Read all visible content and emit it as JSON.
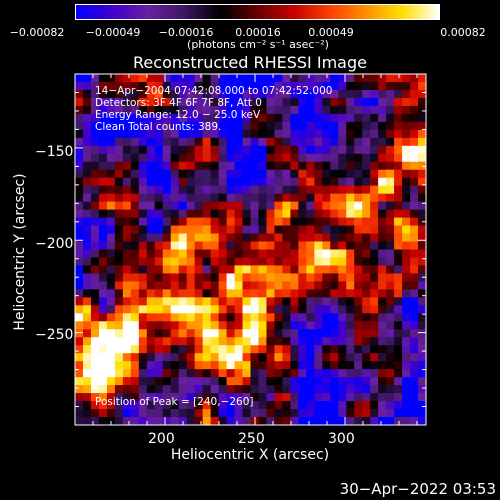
{
  "chart_data": {
    "type": "heatmap",
    "title": "Reconstructed RHESSI Image",
    "xlabel": "Heliocentric X (arcsec)",
    "ylabel": "Heliocentric Y (arcsec)",
    "xlim": [
      150,
      345
    ],
    "ylim": [
      -300,
      -110
    ],
    "x_ticks": [
      200,
      250,
      300
    ],
    "y_ticks": [
      -150,
      -200,
      -250
    ],
    "x_tick_labels": [
      "200",
      "250",
      "300"
    ],
    "y_tick_labels": [
      "−150",
      "−200",
      "−250"
    ],
    "colorbar": {
      "min": -0.00082,
      "max": 0.00082,
      "tick_labels": [
        "−0.00082",
        "−0.00049",
        "−0.00016",
        "0.00016",
        "0.00049",
        "0.00082"
      ],
      "units": "(photons cm⁻² s⁻¹ asec⁻²)"
    },
    "annotation_lines": [
      "14−Apr−2004 07:42:08.000 to 07:42:52.000",
      "Detectors: 3F 4F 6F 7F 8F, Att 0",
      "Energy Range: 12.0 − 25.0 keV",
      "Clean     Total counts: 389."
    ],
    "peak_label": "Position of Peak = [240,−260]",
    "peak_position": [
      240,
      -260
    ],
    "grid": false,
    "colormap": [
      "#0000ff",
      "#4000cc",
      "#6a20a0",
      "#3a1660",
      "#000000",
      "#6a0000",
      "#c80000",
      "#ff4000",
      "#ff9000",
      "#ffe000",
      "#ffffff"
    ]
  },
  "footer_date": "30−Apr−2022 03:53"
}
